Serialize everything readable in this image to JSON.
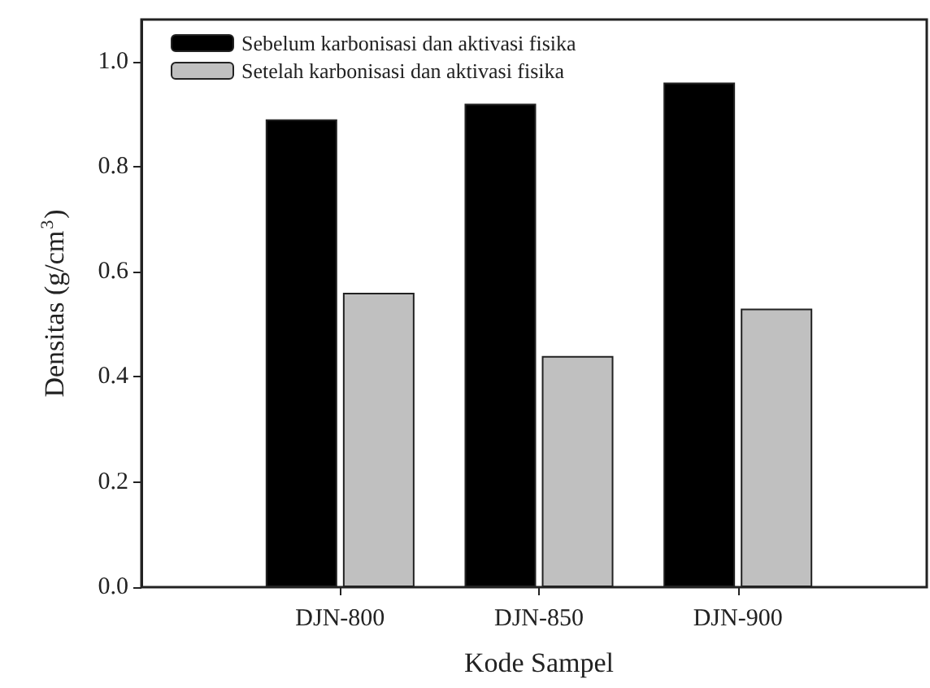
{
  "chart_data": {
    "type": "bar",
    "xlabel": "Kode Sampel",
    "ylabel": "Densitas (g/cm$^{3}$)",
    "categories": [
      "DJN-800",
      "DJN-850",
      "DJN-900"
    ],
    "series": [
      {
        "name": "Sebelum karbonisasi dan aktivasi fisika",
        "color": "#000000",
        "values": [
          0.89,
          0.92,
          0.96
        ]
      },
      {
        "name": "Setelah karbonisasi dan aktivasi fisika",
        "color": "#c0c0c0",
        "values": [
          0.56,
          0.44,
          0.53
        ]
      }
    ],
    "ylim": [
      0,
      1.08
    ],
    "yticks": [
      {
        "value": 0,
        "label": "0.0"
      },
      {
        "value": 0.2,
        "label": "0.2"
      },
      {
        "value": 0.4,
        "label": "0.4"
      },
      {
        "value": 0.6,
        "label": "0.6"
      },
      {
        "value": 0.8,
        "label": "0.8"
      },
      {
        "value": 1,
        "label": "1.0"
      }
    ],
    "grid": false,
    "legend": "top left"
  }
}
